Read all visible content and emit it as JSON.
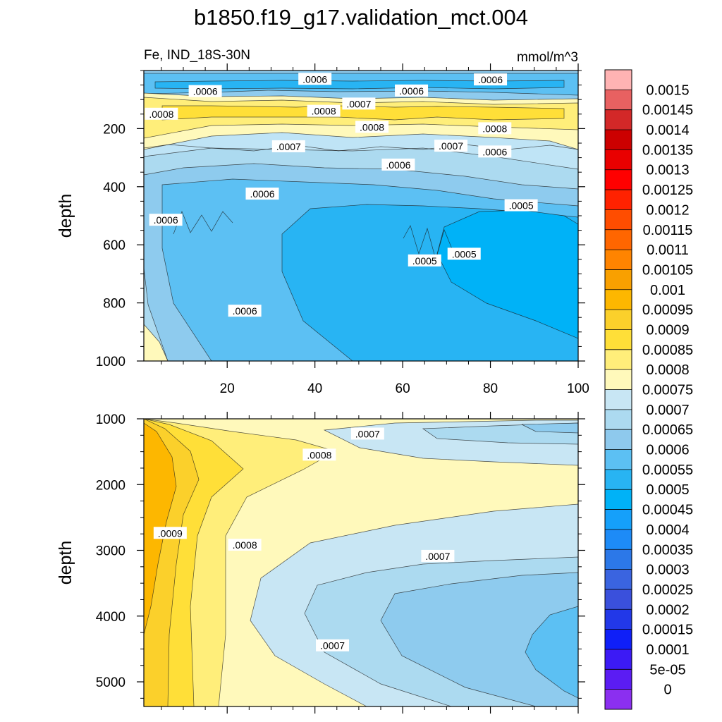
{
  "title": "b1850.f19_g17.validation_mct.004",
  "chart_data": [
    {
      "type": "heatmap",
      "left_label": "Fe, IND_18S-30N",
      "right_label": "mmol/m^3",
      "ylabel": "depth",
      "xlim": [
        1,
        100
      ],
      "ylim": [
        0,
        1000
      ],
      "y_reversed": true,
      "x_ticks": [
        20,
        40,
        60,
        80,
        100
      ],
      "y_ticks": [
        200,
        400,
        600,
        800,
        1000
      ],
      "contour_labels": [
        {
          "text": ".0006",
          "x": 15,
          "y": 72
        },
        {
          "text": ".0006",
          "x": 40,
          "y": 30
        },
        {
          "text": ".0007",
          "x": 50,
          "y": 115
        },
        {
          "text": ".0006",
          "x": 62,
          "y": 70
        },
        {
          "text": ".0006",
          "x": 80,
          "y": 32
        },
        {
          "text": ".0008",
          "x": 5,
          "y": 150
        },
        {
          "text": ".0008",
          "x": 42,
          "y": 140
        },
        {
          "text": ".0008",
          "x": 53,
          "y": 195
        },
        {
          "text": ".0008",
          "x": 81,
          "y": 200
        },
        {
          "text": ".0007",
          "x": 34,
          "y": 262
        },
        {
          "text": ".0007",
          "x": 71,
          "y": 260
        },
        {
          "text": ".0006",
          "x": 81,
          "y": 280
        },
        {
          "text": ".0006",
          "x": 59,
          "y": 325
        },
        {
          "text": ".0006",
          "x": 28,
          "y": 425
        },
        {
          "text": ".0006",
          "x": 6,
          "y": 515
        },
        {
          "text": ".0005",
          "x": 87,
          "y": 465
        },
        {
          "text": ".0005",
          "x": 65,
          "y": 655
        },
        {
          "text": ".0005",
          "x": 74,
          "y": 632
        },
        {
          "text": ".0006",
          "x": 24,
          "y": 828
        }
      ]
    },
    {
      "type": "heatmap",
      "ylabel": "depth",
      "xlim": [
        1,
        100
      ],
      "ylim": [
        1000,
        5375
      ],
      "y_reversed": true,
      "y_ticks": [
        1000,
        2000,
        3000,
        4000,
        5000
      ],
      "contour_labels": [
        {
          "text": ".0007",
          "x": 52,
          "y": 1230
        },
        {
          "text": ".0008",
          "x": 41,
          "y": 1550
        },
        {
          "text": ".0009",
          "x": 7,
          "y": 2740
        },
        {
          "text": ".0008",
          "x": 24,
          "y": 2920
        },
        {
          "text": ".0007",
          "x": 68,
          "y": 3090
        },
        {
          "text": ".0007",
          "x": 44,
          "y": 4450
        }
      ]
    }
  ],
  "colorbar": {
    "colors": [
      "#ffb3b3",
      "#e86161",
      "#d32828",
      "#cc0000",
      "#e90000",
      "#ff0000",
      "#ff2200",
      "#ff4d00",
      "#ff6600",
      "#ff8400",
      "#f9a000",
      "#fdb700",
      "#fbd02b",
      "#ffdf38",
      "#ffee7a",
      "#fff9bb",
      "#c8e6f4",
      "#acdaf0",
      "#8ec9ed",
      "#5cc0f3",
      "#28b4f3",
      "#00b2f7",
      "#15a0fa",
      "#1d8bf7",
      "#2c78e8",
      "#3a64e0",
      "#3a50dc",
      "#2238e8",
      "#0f1ff8",
      "#3c1af5",
      "#5b1cf3",
      "#8b2ff0"
    ],
    "labels": [
      "0.0015",
      "0.00145",
      "0.0014",
      "0.00135",
      "0.0013",
      "0.00125",
      "0.0012",
      "0.00115",
      "0.0011",
      "0.00105",
      "0.001",
      "0.00095",
      "0.0009",
      "0.00085",
      "0.0008",
      "0.00075",
      "0.0007",
      "0.00065",
      "0.0006",
      "0.00055",
      "0.0005",
      "0.00045",
      "0.0004",
      "0.00035",
      "0.0003",
      "0.00025",
      "0.0002",
      "0.00015",
      "0.0001",
      "5e-05",
      "0"
    ]
  }
}
